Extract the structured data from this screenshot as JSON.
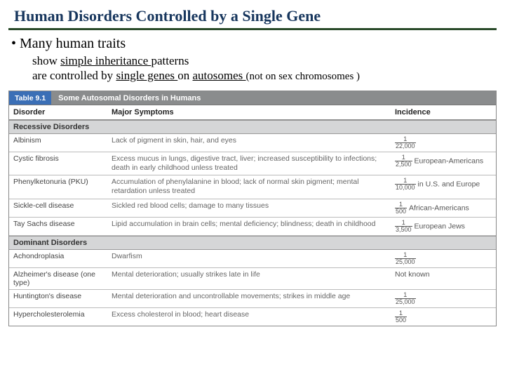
{
  "title": "Human Disorders Controlled by a Single Gene",
  "bullet": "Many human traits",
  "sub1_pre": "show ",
  "sub1_u": "simple inheritance ",
  "sub1_post": "patterns",
  "sub2_pre": "are controlled by ",
  "sub2_u1": "single genes ",
  "sub2_mid": "on ",
  "sub2_u2": "autosomes ",
  "sub2_paren": "(not on sex chromosomes )",
  "table": {
    "number": "Table 9.1",
    "caption": "Some Autosomal Disorders in Humans",
    "cols": {
      "c1": "Disorder",
      "c2": "Major Symptoms",
      "c3": "Incidence"
    },
    "sect1": "Recessive Disorders",
    "sect2": "Dominant Disorders",
    "r1": {
      "d": "Albinism",
      "s": "Lack of pigment in skin, hair, and eyes",
      "num": "1",
      "den": "22,000",
      "suf": ""
    },
    "r2": {
      "d": "Cystic fibrosis",
      "s": "Excess mucus in lungs, digestive tract, liver; increased susceptibility to infections; death in early childhood unless treated",
      "num": "1",
      "den": "2,500",
      "suf": "European-Americans"
    },
    "r3": {
      "d": "Phenylketonuria (PKU)",
      "s": "Accumulation of phenylalanine in blood; lack of normal skin pigment; mental retardation unless treated",
      "num": "1",
      "den": "10,000",
      "suf": "in U.S. and Europe"
    },
    "r4": {
      "d": "Sickle-cell disease",
      "s": "Sickled red blood cells; damage to many tissues",
      "num": "1",
      "den": "500",
      "suf": "African-Americans"
    },
    "r5": {
      "d": "Tay Sachs disease",
      "s": "Lipid accumulation in brain cells; mental deficiency; blindness; death in childhood",
      "num": "1",
      "den": "3,500",
      "suf": "European Jews"
    },
    "r6": {
      "d": "Achondroplasia",
      "s": "Dwarfism",
      "num": "1",
      "den": "25,000",
      "suf": ""
    },
    "r7": {
      "d": "Alzheimer's disease (one type)",
      "s": "Mental deterioration; usually strikes late in life",
      "inc": "Not known"
    },
    "r8": {
      "d": "Huntington's disease",
      "s": "Mental deterioration and uncontrollable movements; strikes in middle age",
      "num": "1",
      "den": "25,000",
      "suf": ""
    },
    "r9": {
      "d": "Hypercholesterolemia",
      "s": "Excess cholesterol in blood; heart disease",
      "num": "1",
      "den": "500",
      "suf": ""
    }
  }
}
